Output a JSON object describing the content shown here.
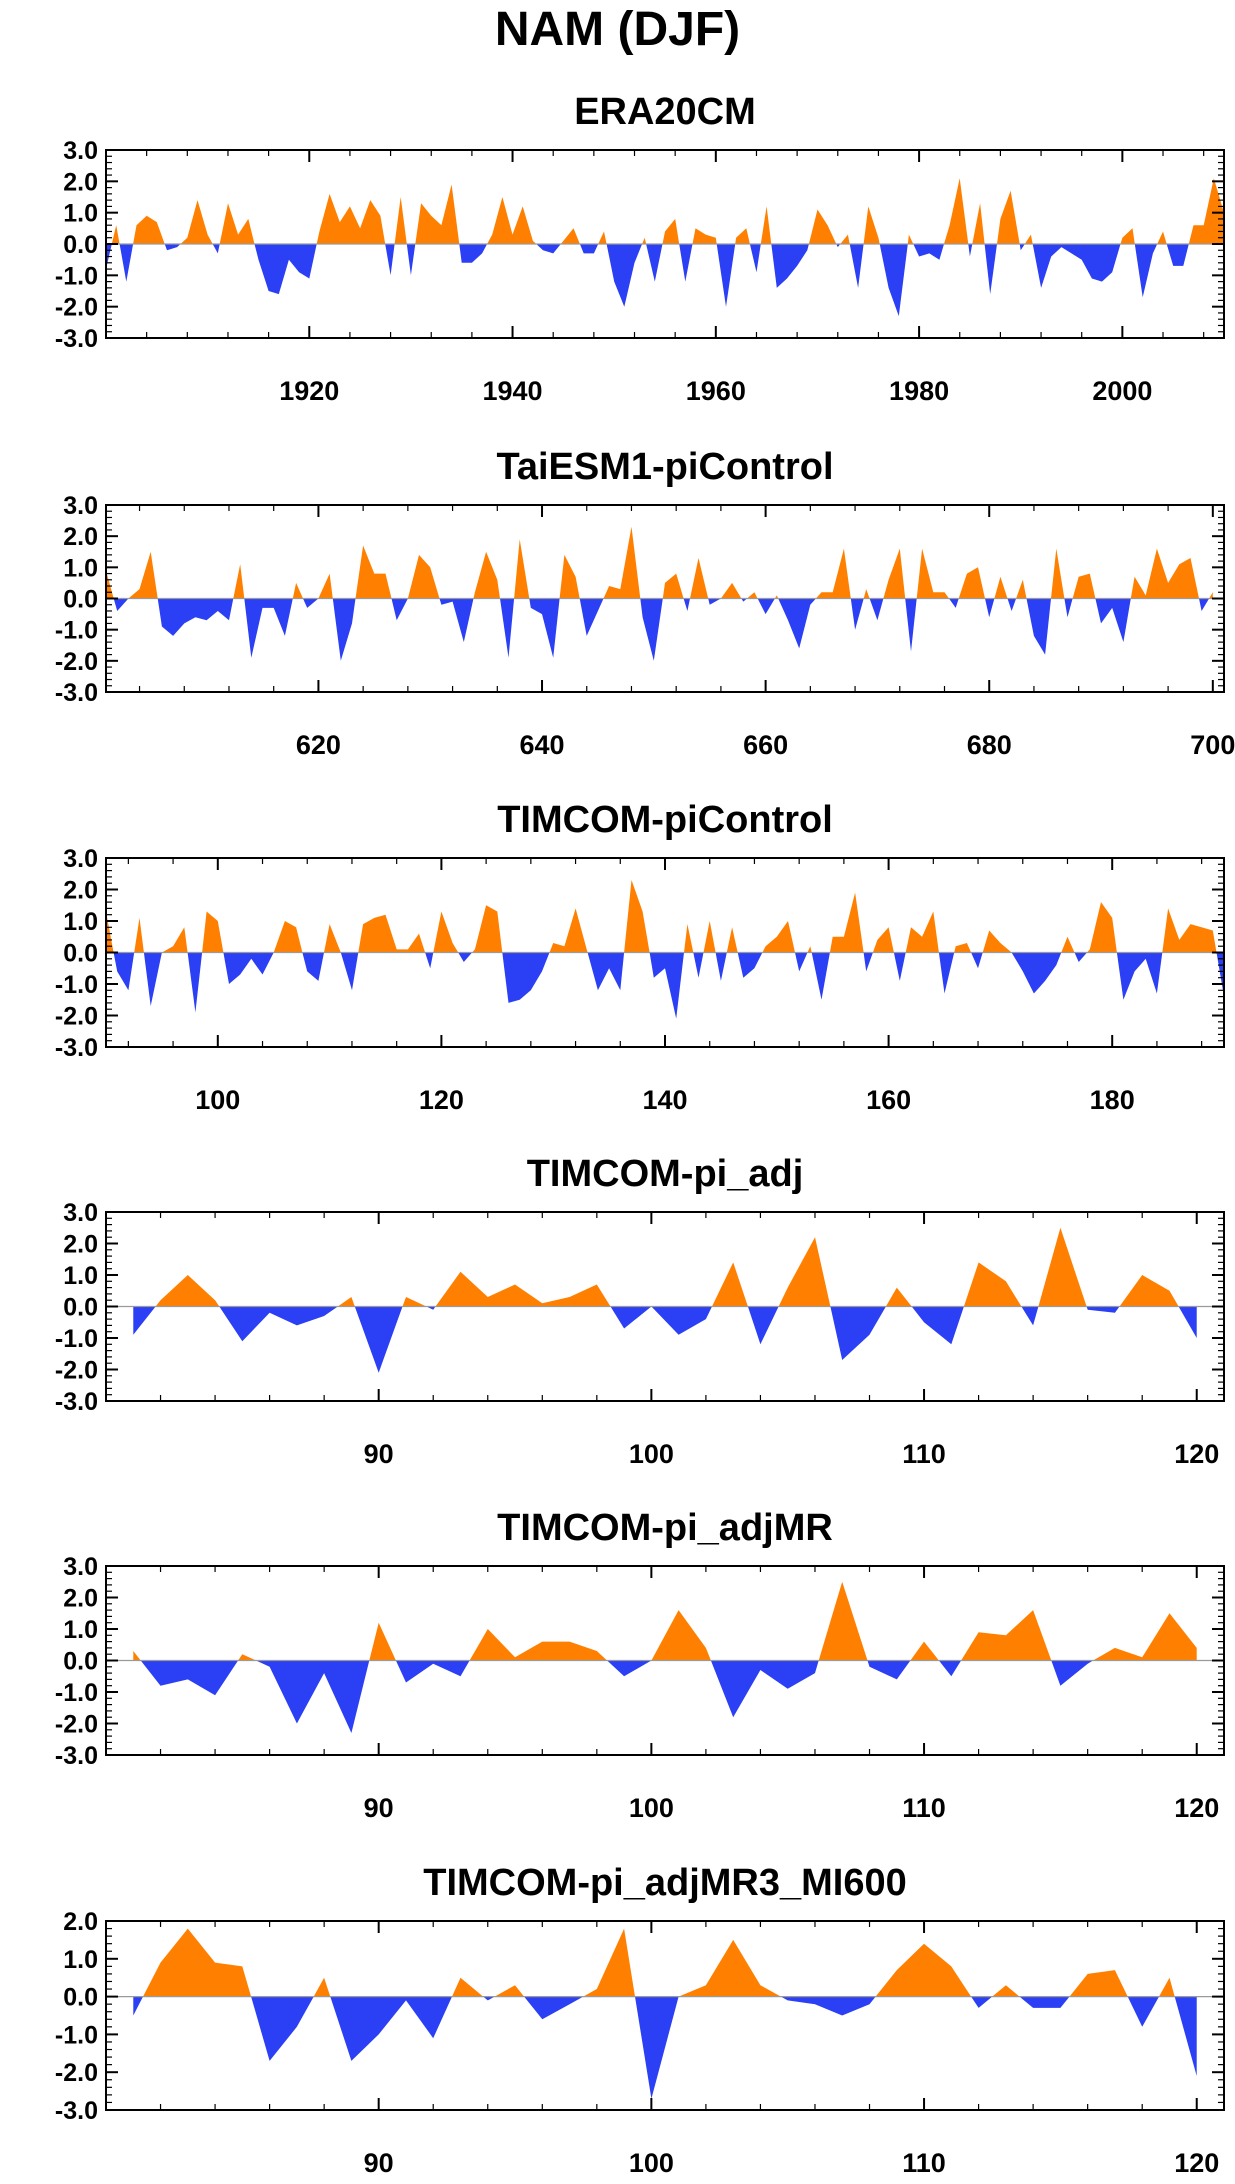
{
  "title": "NAM (DJF)",
  "colors": {
    "positive": "#ff8000",
    "negative": "#2b3ff5",
    "axis": "#000000"
  },
  "chart_data": [
    {
      "type": "area",
      "title": "ERA20CM",
      "xlim": [
        1900,
        2010
      ],
      "ylim": [
        -3,
        3
      ],
      "xticks": [
        1920,
        1940,
        1960,
        1980,
        2000
      ],
      "yticks": [
        "-3.0",
        "-2.0",
        "-1.0",
        "0.0",
        "1.0",
        "2.0",
        "3.0"
      ],
      "x_start": 1900,
      "values": [
        -0.8,
        0.6,
        -1.2,
        0.6,
        0.9,
        0.7,
        -0.2,
        -0.1,
        0.2,
        1.4,
        0.3,
        -0.3,
        1.3,
        0.3,
        0.8,
        -0.5,
        -1.5,
        -1.6,
        -0.5,
        -0.9,
        -1.1,
        0.4,
        1.6,
        0.7,
        1.2,
        0.5,
        1.4,
        0.9,
        -1.0,
        1.5,
        -1.0,
        1.3,
        0.9,
        0.6,
        1.9,
        -0.6,
        -0.6,
        -0.3,
        0.3,
        1.5,
        0.3,
        1.2,
        0.1,
        -0.2,
        -0.3,
        0.1,
        0.5,
        -0.3,
        -0.3,
        0.4,
        -1.2,
        -2.0,
        -0.6,
        0.2,
        -1.2,
        0.4,
        0.8,
        -1.2,
        0.5,
        0.3,
        0.2,
        -2.0,
        0.2,
        0.5,
        -0.9,
        1.2,
        -1.4,
        -1.1,
        -0.7,
        -0.2,
        1.1,
        0.6,
        -0.1,
        0.3,
        -1.4,
        1.2,
        0.2,
        -1.4,
        -2.3,
        0.3,
        -0.4,
        -0.3,
        -0.5,
        0.6,
        2.1,
        -0.4,
        1.3,
        -1.6,
        0.8,
        1.7,
        -0.2,
        0.3,
        -1.4,
        -0.4,
        -0.1,
        -0.3,
        -0.5,
        -1.1,
        -1.2,
        -0.9,
        0.2,
        0.5,
        -1.7,
        -0.3,
        0.4,
        -0.7,
        -0.7,
        0.6,
        0.6,
        2.1,
        1.0
      ]
    },
    {
      "type": "area",
      "title": "TaiESM1-piControl",
      "xlim": [
        601,
        701
      ],
      "ylim": [
        -3,
        3
      ],
      "xticks": [
        620,
        640,
        660,
        680,
        700
      ],
      "yticks": [
        "-3.0",
        "-2.0",
        "-1.0",
        "0.0",
        "1.0",
        "2.0",
        "3.0"
      ],
      "x_start": 601,
      "values": [
        0.9,
        -0.4,
        0.0,
        0.3,
        1.5,
        -0.9,
        -1.2,
        -0.8,
        -0.6,
        -0.7,
        -0.4,
        -0.7,
        1.1,
        -1.9,
        -0.3,
        -0.3,
        -1.2,
        0.5,
        -0.3,
        0.0,
        0.8,
        -2.0,
        -0.8,
        1.7,
        0.8,
        0.8,
        -0.7,
        0.0,
        1.4,
        1.0,
        -0.2,
        -0.1,
        -1.4,
        0.2,
        1.5,
        0.6,
        -1.9,
        1.9,
        -0.3,
        -0.5,
        -1.9,
        1.4,
        0.7,
        -1.2,
        -0.4,
        0.4,
        0.3,
        2.3,
        -0.6,
        -2.0,
        0.5,
        0.8,
        -0.4,
        1.3,
        -0.2,
        0.0,
        0.5,
        -0.1,
        0.2,
        -0.5,
        0.1,
        -0.7,
        -1.6,
        -0.2,
        0.2,
        0.2,
        1.6,
        -1.0,
        0.3,
        -0.7,
        0.6,
        1.6,
        -1.7,
        1.6,
        0.2,
        0.2,
        -0.3,
        0.8,
        1.0,
        -0.6,
        0.7,
        -0.4,
        0.6,
        -1.2,
        -1.8,
        1.6,
        -0.6,
        0.7,
        0.8,
        -0.8,
        -0.3,
        -1.4,
        0.7,
        0.1,
        1.6,
        0.5,
        1.1,
        1.3,
        -0.4,
        0.2
      ]
    },
    {
      "type": "area",
      "title": "TIMCOM-piControl",
      "xlim": [
        90,
        190
      ],
      "ylim": [
        -3,
        3
      ],
      "xticks": [
        100,
        120,
        140,
        160,
        180
      ],
      "yticks": [
        "-3.0",
        "-2.0",
        "-1.0",
        "0.0",
        "1.0",
        "2.0",
        "3.0"
      ],
      "x_start": 90,
      "values": [
        1.3,
        -0.6,
        -1.2,
        1.1,
        -1.7,
        0.0,
        0.2,
        0.8,
        -1.9,
        1.3,
        1.0,
        -1.0,
        -0.7,
        -0.2,
        -0.7,
        0.0,
        1.0,
        0.8,
        -0.6,
        -0.9,
        0.9,
        0.0,
        -1.2,
        0.9,
        1.1,
        1.2,
        0.1,
        0.1,
        0.6,
        -0.5,
        1.3,
        0.3,
        -0.3,
        0.1,
        1.5,
        1.3,
        -1.6,
        -1.5,
        -1.2,
        -0.6,
        0.3,
        0.2,
        1.4,
        0.1,
        -1.2,
        -0.5,
        -1.2,
        2.3,
        1.3,
        -0.8,
        -0.5,
        -2.1,
        0.9,
        -0.8,
        1.0,
        -0.9,
        0.8,
        -0.8,
        -0.5,
        0.2,
        0.5,
        1.0,
        -0.6,
        0.2,
        -1.5,
        0.5,
        0.5,
        1.9,
        -0.6,
        0.4,
        0.8,
        -0.9,
        0.8,
        0.5,
        1.3,
        -1.3,
        0.2,
        0.3,
        -0.5,
        0.7,
        0.3,
        0.0,
        -0.6,
        -1.3,
        -0.9,
        -0.4,
        0.5,
        -0.3,
        0.1,
        1.6,
        1.1,
        -1.5,
        -0.6,
        -0.2,
        -1.3,
        1.4,
        0.4,
        0.9,
        0.8,
        0.7,
        -1.4
      ]
    },
    {
      "type": "area",
      "title": "TIMCOM-pi_adj",
      "xlim": [
        80,
        121
      ],
      "ylim": [
        -3,
        3
      ],
      "xticks": [
        90,
        100,
        110,
        120
      ],
      "yticks": [
        "-3.0",
        "-2.0",
        "-1.0",
        "0.0",
        "1.0",
        "2.0",
        "3.0"
      ],
      "x_start": 81,
      "values": [
        -0.9,
        0.2,
        1.0,
        0.2,
        -1.1,
        -0.2,
        -0.6,
        -0.3,
        0.3,
        -2.1,
        0.3,
        -0.1,
        1.1,
        0.3,
        0.7,
        0.1,
        0.3,
        0.7,
        -0.7,
        0.0,
        -0.9,
        -0.4,
        1.4,
        -1.2,
        0.6,
        2.2,
        -1.7,
        -0.9,
        0.6,
        -0.5,
        -1.2,
        1.4,
        0.8,
        -0.6,
        2.5,
        -0.1,
        -0.2,
        1.0,
        0.5,
        -1.0
      ]
    },
    {
      "type": "area",
      "title": "TIMCOM-pi_adjMR",
      "xlim": [
        80,
        121
      ],
      "ylim": [
        -3,
        3
      ],
      "xticks": [
        90,
        100,
        110,
        120
      ],
      "yticks": [
        "-3.0",
        "-2.0",
        "-1.0",
        "0.0",
        "1.0",
        "2.0",
        "3.0"
      ],
      "x_start": 81,
      "values": [
        0.3,
        -0.8,
        -0.6,
        -1.1,
        0.2,
        -0.2,
        -2.0,
        -0.4,
        -2.3,
        1.2,
        -0.7,
        -0.1,
        -0.5,
        1.0,
        0.1,
        0.6,
        0.6,
        0.3,
        -0.5,
        0.0,
        1.6,
        0.4,
        -1.8,
        -0.3,
        -0.9,
        -0.4,
        2.5,
        -0.2,
        -0.6,
        0.6,
        -0.5,
        0.9,
        0.8,
        1.6,
        -0.8,
        -0.1,
        0.4,
        0.1,
        1.5,
        0.4
      ]
    },
    {
      "type": "area",
      "title": "TIMCOM-pi_adjMR3_MI600",
      "xlim": [
        80,
        121
      ],
      "ylim": [
        -3,
        2
      ],
      "xticks": [
        90,
        100,
        110,
        120
      ],
      "yticks": [
        "-3.0",
        "-2.0",
        "-1.0",
        "0.0",
        "1.0",
        "2.0"
      ],
      "x_start": 81,
      "values": [
        -0.5,
        0.9,
        1.8,
        0.9,
        0.8,
        -1.7,
        -0.8,
        0.5,
        -1.7,
        -1.0,
        -0.1,
        -1.1,
        0.5,
        -0.1,
        0.3,
        -0.6,
        -0.2,
        0.2,
        1.8,
        -2.7,
        0.0,
        0.3,
        1.5,
        0.3,
        -0.1,
        -0.2,
        -0.5,
        -0.2,
        0.7,
        1.4,
        0.8,
        -0.3,
        0.3,
        -0.3,
        -0.3,
        0.6,
        0.7,
        -0.8,
        0.5,
        -2.1
      ]
    }
  ]
}
